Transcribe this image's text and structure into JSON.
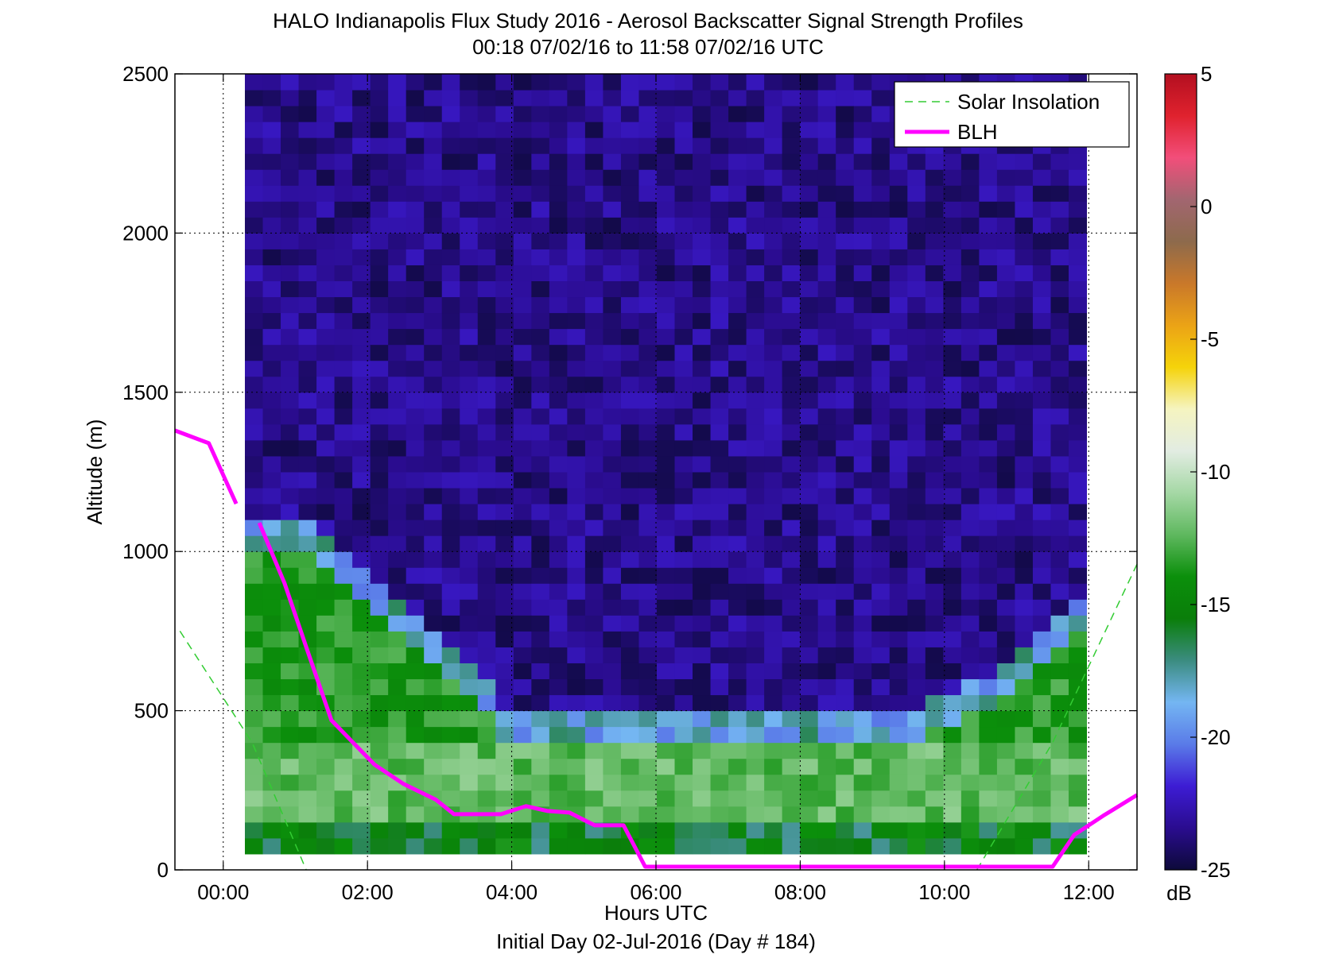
{
  "chart_data": {
    "type": "heatmap",
    "title": "HALO Indianapolis Flux Study 2016 - Aerosol Backscatter Signal Strength Profiles",
    "subtitle": "00:18 07/02/16 to 11:58 07/02/16  UTC",
    "xlabel": "Hours UTC",
    "xlabel2": "Initial Day 02-Jul-2016 (Day # 184)",
    "ylabel": "Altitude (m)",
    "xlim": [
      -0.67,
      12.67
    ],
    "ylim": [
      0,
      2500
    ],
    "x_ticks": [
      0,
      2,
      4,
      6,
      8,
      10,
      12
    ],
    "x_tick_labels": [
      "00:00",
      "02:00",
      "04:00",
      "06:00",
      "08:00",
      "10:00",
      "12:00"
    ],
    "y_ticks": [
      0,
      500,
      1000,
      1500,
      2000,
      2500
    ],
    "y_tick_labels": [
      "0",
      "500",
      "1000",
      "1500",
      "2000",
      "2500"
    ],
    "grid": true,
    "colorbar": {
      "label": "dB",
      "range": [
        -25,
        5
      ],
      "ticks": [
        5,
        0,
        -5,
        -10,
        -15,
        -20,
        -25
      ],
      "tick_labels": [
        "5",
        "0",
        "-5",
        "-10",
        "-15",
        "-20",
        "-25"
      ],
      "colors": [
        "#0d0a3a",
        "#2a0c8f",
        "#3d1cd4",
        "#5a7be8",
        "#74b6f2",
        "#3b8c80",
        "#0a7e0a",
        "#0b8f0b",
        "#5fb85f",
        "#a5d8a5",
        "#e2ece2",
        "#f5f4c0",
        "#f5d30a",
        "#eba316",
        "#c9782a",
        "#8d6a4c",
        "#a26670",
        "#f24e7a",
        "#e0222e",
        "#b30f20"
      ]
    },
    "heatmap": {
      "x_start_hour": 0.3,
      "x_end_hour": 11.97,
      "y_start_m": 50,
      "y_end_m": 2500,
      "bin_m": 50,
      "boundary_height_m": [
        1100,
        1100,
        1100,
        1100,
        1050,
        1000,
        950,
        900,
        850,
        800,
        750,
        700,
        650,
        600,
        500,
        475,
        475,
        475,
        475,
        475,
        475,
        475,
        475,
        475,
        475,
        475,
        475,
        475,
        475,
        475,
        475,
        475,
        475,
        475,
        475,
        475,
        475,
        500,
        525,
        550,
        575,
        600,
        650,
        700,
        750,
        800,
        850
      ],
      "aloft_level_db": -23.5,
      "boundary_level_db": -15.5,
      "surface_level_db": -13.5
    },
    "series": [
      {
        "name": "Solar Insolation",
        "style": "dashed",
        "color": "#33cc33",
        "segments": [
          {
            "x": [
              -0.6,
              0.4,
              1.15
            ],
            "y": [
              750,
              400,
              0
            ]
          },
          {
            "x": [
              10.45,
              11.5,
              12.67
            ],
            "y": [
              0,
              400,
              960
            ]
          }
        ]
      },
      {
        "name": "BLH",
        "style": "solid",
        "color": "#ff00ff",
        "segments": [
          {
            "x": [
              -0.67,
              -0.2,
              0.18
            ],
            "y": [
              1380,
              1340,
              1150
            ]
          },
          {
            "x": [
              0.5,
              0.85,
              1.15,
              1.5,
              1.8,
              2.1,
              2.5,
              2.95,
              3.2,
              3.5,
              3.85,
              4.2,
              4.5,
              4.8,
              5.15,
              5.55,
              5.85,
              6.2,
              7.0,
              8.0,
              9.0,
              10.0,
              11.0,
              11.5,
              11.8,
              12.2,
              12.67
            ],
            "y": [
              1090,
              900,
              700,
              470,
              400,
              330,
              270,
              220,
              175,
              175,
              175,
              200,
              185,
              180,
              140,
              140,
              10,
              10,
              10,
              10,
              10,
              10,
              10,
              10,
              110,
              170,
              235
            ]
          }
        ]
      }
    ],
    "legend": {
      "position": "top-right",
      "entries": [
        "Solar Insolation",
        "BLH"
      ]
    }
  }
}
